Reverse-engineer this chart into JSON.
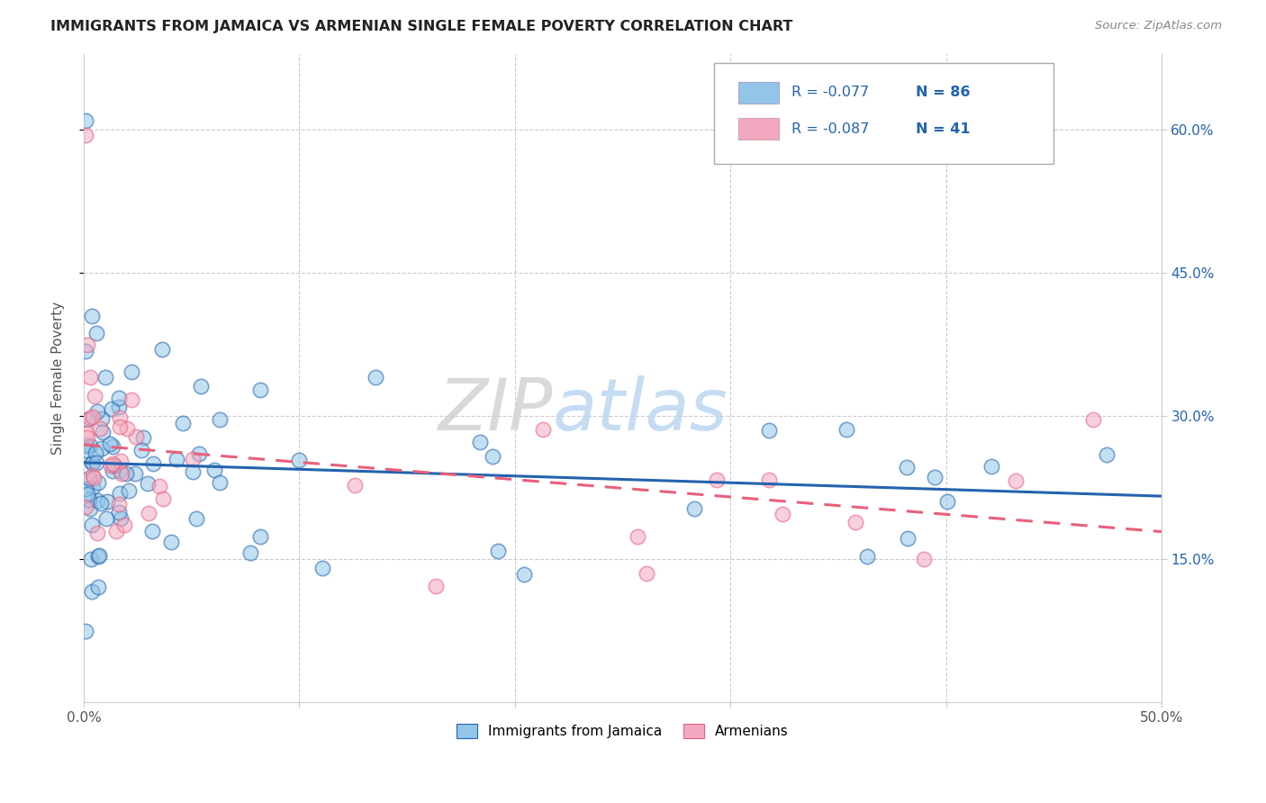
{
  "title": "IMMIGRANTS FROM JAMAICA VS ARMENIAN SINGLE FEMALE POVERTY CORRELATION CHART",
  "source": "Source: ZipAtlas.com",
  "ylabel": "Single Female Poverty",
  "xlim": [
    0.0,
    0.5
  ],
  "ylim": [
    0.0,
    0.68
  ],
  "yticks": [
    0.15,
    0.3,
    0.45,
    0.6
  ],
  "ytick_labels": [
    "15.0%",
    "30.0%",
    "45.0%",
    "60.0%"
  ],
  "xticks": [
    0.0,
    0.1,
    0.2,
    0.3,
    0.4,
    0.5
  ],
  "xtick_labels": [
    "0.0%",
    "",
    "",
    "",
    "",
    "50.0%"
  ],
  "legend_label_blue": "Immigrants from Jamaica",
  "legend_label_pink": "Armenians",
  "blue_color": "#92C5E8",
  "pink_color": "#F4A8C0",
  "blue_line_color": "#2463AE",
  "pink_line_color": "#E8607A",
  "watermark_zip": "ZIP",
  "watermark_atlas": "atlas",
  "legend_r_blue": "R = -0.077",
  "legend_n_blue": "N = 86",
  "legend_r_pink": "R = -0.087",
  "legend_n_pink": "N = 41",
  "legend_text_color": "#2463AE",
  "legend_rn_color": "#333333"
}
